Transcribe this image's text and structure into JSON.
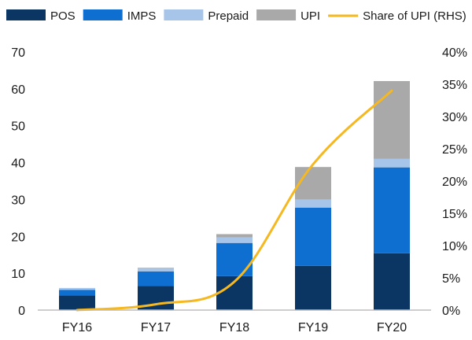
{
  "chart_data": {
    "type": "bar",
    "stacked": true,
    "categories": [
      "FY16",
      "FY17",
      "FY18",
      "FY19",
      "FY20"
    ],
    "series": [
      {
        "name": "POS",
        "kind": "bar",
        "axis": "left",
        "color": "#0b3563",
        "values": [
          4.0,
          6.5,
          9.2,
          12.0,
          15.4
        ]
      },
      {
        "name": "IMPS",
        "kind": "bar",
        "axis": "left",
        "color": "#0f6fd1",
        "values": [
          1.5,
          4.0,
          9.0,
          15.8,
          23.3
        ]
      },
      {
        "name": "Prepaid",
        "kind": "bar",
        "axis": "left",
        "color": "#a7c5e8",
        "values": [
          0.5,
          0.9,
          1.5,
          2.2,
          2.3
        ]
      },
      {
        "name": "UPI",
        "kind": "bar",
        "axis": "left",
        "color": "#a9a9a9",
        "values": [
          0.0,
          0.1,
          0.9,
          8.8,
          21.1
        ]
      },
      {
        "name": "Share of UPI (RHS)",
        "kind": "line",
        "axis": "right",
        "color": "#f5b820",
        "values": [
          0.0,
          0.9,
          4.4,
          22.6,
          34.0
        ]
      }
    ],
    "y_left": {
      "min": 0,
      "max": 70,
      "ticks": [
        0,
        10,
        20,
        30,
        40,
        50,
        60,
        70
      ],
      "tick_labels": [
        "0",
        "10",
        "20",
        "30",
        "40",
        "50",
        "60",
        "70"
      ]
    },
    "y_right": {
      "min": 0,
      "max": 40,
      "ticks": [
        0,
        5,
        10,
        15,
        20,
        25,
        30,
        35,
        40
      ],
      "tick_labels": [
        "0%",
        "5%",
        "10%",
        "15%",
        "20%",
        "25%",
        "30%",
        "35%",
        "40%"
      ]
    },
    "legend": {
      "position": "top"
    },
    "grid": false
  }
}
